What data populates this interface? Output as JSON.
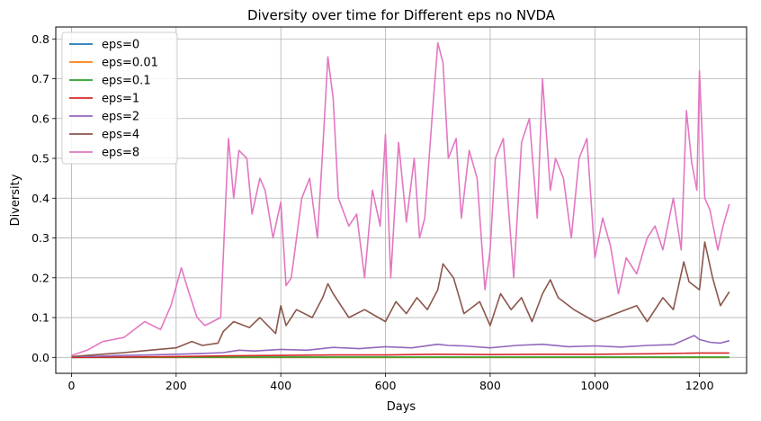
{
  "chart_data": {
    "type": "line",
    "title": "Diversity over time for Different eps no NVDA",
    "xlabel": "Days",
    "ylabel": "Diversity",
    "xlim": [
      -30,
      1290
    ],
    "ylim": [
      -0.04,
      0.83
    ],
    "xticks": [
      0,
      200,
      400,
      600,
      800,
      1000,
      1200
    ],
    "xtick_labels": [
      "0",
      "200",
      "400",
      "600",
      "800",
      "1000",
      "1200"
    ],
    "yticks": [
      0.0,
      0.1,
      0.2,
      0.3,
      0.4,
      0.5,
      0.6,
      0.7,
      0.8
    ],
    "ytick_labels": [
      "0.0",
      "0.1",
      "0.2",
      "0.3",
      "0.4",
      "0.5",
      "0.6",
      "0.7",
      "0.8"
    ],
    "grid": true,
    "legend_position": "top-left",
    "series": [
      {
        "name": "eps=0",
        "color": "#1f77b4",
        "x": [
          0,
          1257
        ],
        "y": [
          0.0,
          0.0
        ]
      },
      {
        "name": "eps=0.01",
        "color": "#ff7f0e",
        "x": [
          0,
          1257
        ],
        "y": [
          0.0,
          0.0
        ]
      },
      {
        "name": "eps=0.1",
        "color": "#2ca02c",
        "x": [
          0,
          300,
          600,
          900,
          1257
        ],
        "y": [
          0.0,
          0.001,
          0.001,
          0.001,
          0.001
        ]
      },
      {
        "name": "eps=1",
        "color": "#d62728",
        "x": [
          0,
          100,
          200,
          300,
          400,
          500,
          600,
          700,
          800,
          900,
          1000,
          1100,
          1200,
          1257
        ],
        "y": [
          0.0,
          0.001,
          0.002,
          0.004,
          0.005,
          0.006,
          0.006,
          0.008,
          0.007,
          0.008,
          0.008,
          0.009,
          0.011,
          0.011
        ]
      },
      {
        "name": "eps=2",
        "color": "#9467bd",
        "x": [
          0,
          50,
          100,
          150,
          200,
          250,
          290,
          320,
          350,
          400,
          450,
          500,
          550,
          600,
          650,
          700,
          720,
          750,
          800,
          850,
          900,
          950,
          1000,
          1050,
          1100,
          1150,
          1190,
          1200,
          1220,
          1240,
          1257
        ],
        "y": [
          0.002,
          0.003,
          0.005,
          0.006,
          0.008,
          0.01,
          0.012,
          0.018,
          0.016,
          0.02,
          0.018,
          0.025,
          0.022,
          0.027,
          0.024,
          0.033,
          0.03,
          0.029,
          0.024,
          0.03,
          0.033,
          0.027,
          0.029,
          0.026,
          0.03,
          0.032,
          0.055,
          0.045,
          0.038,
          0.036,
          0.042
        ]
      },
      {
        "name": "eps=4",
        "color": "#8c564b",
        "x": [
          0,
          50,
          100,
          150,
          200,
          230,
          250,
          280,
          290,
          310,
          340,
          360,
          390,
          400,
          410,
          430,
          460,
          480,
          490,
          500,
          530,
          560,
          600,
          620,
          640,
          660,
          680,
          700,
          710,
          730,
          750,
          780,
          800,
          820,
          840,
          860,
          880,
          900,
          915,
          930,
          960,
          1000,
          1040,
          1080,
          1100,
          1130,
          1150,
          1170,
          1180,
          1200,
          1210,
          1225,
          1240,
          1257
        ],
        "y": [
          0.002,
          0.007,
          0.012,
          0.018,
          0.024,
          0.04,
          0.03,
          0.036,
          0.065,
          0.09,
          0.075,
          0.1,
          0.06,
          0.13,
          0.08,
          0.12,
          0.1,
          0.15,
          0.185,
          0.16,
          0.1,
          0.12,
          0.09,
          0.14,
          0.11,
          0.15,
          0.12,
          0.17,
          0.235,
          0.2,
          0.11,
          0.14,
          0.08,
          0.16,
          0.12,
          0.15,
          0.09,
          0.16,
          0.195,
          0.15,
          0.12,
          0.09,
          0.11,
          0.13,
          0.09,
          0.15,
          0.12,
          0.24,
          0.19,
          0.17,
          0.29,
          0.2,
          0.13,
          0.165
        ]
      },
      {
        "name": "eps=8",
        "color": "#e377c2",
        "x": [
          0,
          30,
          60,
          100,
          140,
          170,
          190,
          210,
          225,
          240,
          255,
          270,
          285,
          292,
          300,
          310,
          320,
          335,
          345,
          360,
          370,
          385,
          400,
          410,
          420,
          440,
          455,
          470,
          480,
          490,
          500,
          510,
          530,
          545,
          560,
          575,
          590,
          600,
          610,
          625,
          640,
          655,
          665,
          675,
          690,
          700,
          710,
          720,
          735,
          745,
          760,
          775,
          790,
          800,
          810,
          825,
          845,
          860,
          875,
          890,
          900,
          915,
          925,
          940,
          955,
          970,
          985,
          1000,
          1015,
          1030,
          1045,
          1060,
          1080,
          1100,
          1115,
          1130,
          1150,
          1165,
          1175,
          1185,
          1195,
          1200,
          1210,
          1220,
          1235,
          1245,
          1257
        ],
        "y": [
          0.005,
          0.018,
          0.04,
          0.05,
          0.09,
          0.07,
          0.13,
          0.225,
          0.16,
          0.1,
          0.08,
          0.09,
          0.1,
          0.31,
          0.55,
          0.4,
          0.52,
          0.5,
          0.36,
          0.45,
          0.42,
          0.3,
          0.39,
          0.18,
          0.2,
          0.4,
          0.45,
          0.3,
          0.52,
          0.755,
          0.65,
          0.4,
          0.33,
          0.36,
          0.2,
          0.42,
          0.33,
          0.56,
          0.2,
          0.54,
          0.34,
          0.5,
          0.3,
          0.35,
          0.62,
          0.79,
          0.74,
          0.5,
          0.55,
          0.35,
          0.52,
          0.45,
          0.17,
          0.27,
          0.5,
          0.55,
          0.2,
          0.54,
          0.6,
          0.35,
          0.7,
          0.42,
          0.5,
          0.45,
          0.3,
          0.5,
          0.55,
          0.25,
          0.35,
          0.28,
          0.16,
          0.25,
          0.21,
          0.3,
          0.33,
          0.27,
          0.4,
          0.27,
          0.62,
          0.49,
          0.42,
          0.72,
          0.4,
          0.37,
          0.27,
          0.33,
          0.385
        ]
      }
    ]
  }
}
